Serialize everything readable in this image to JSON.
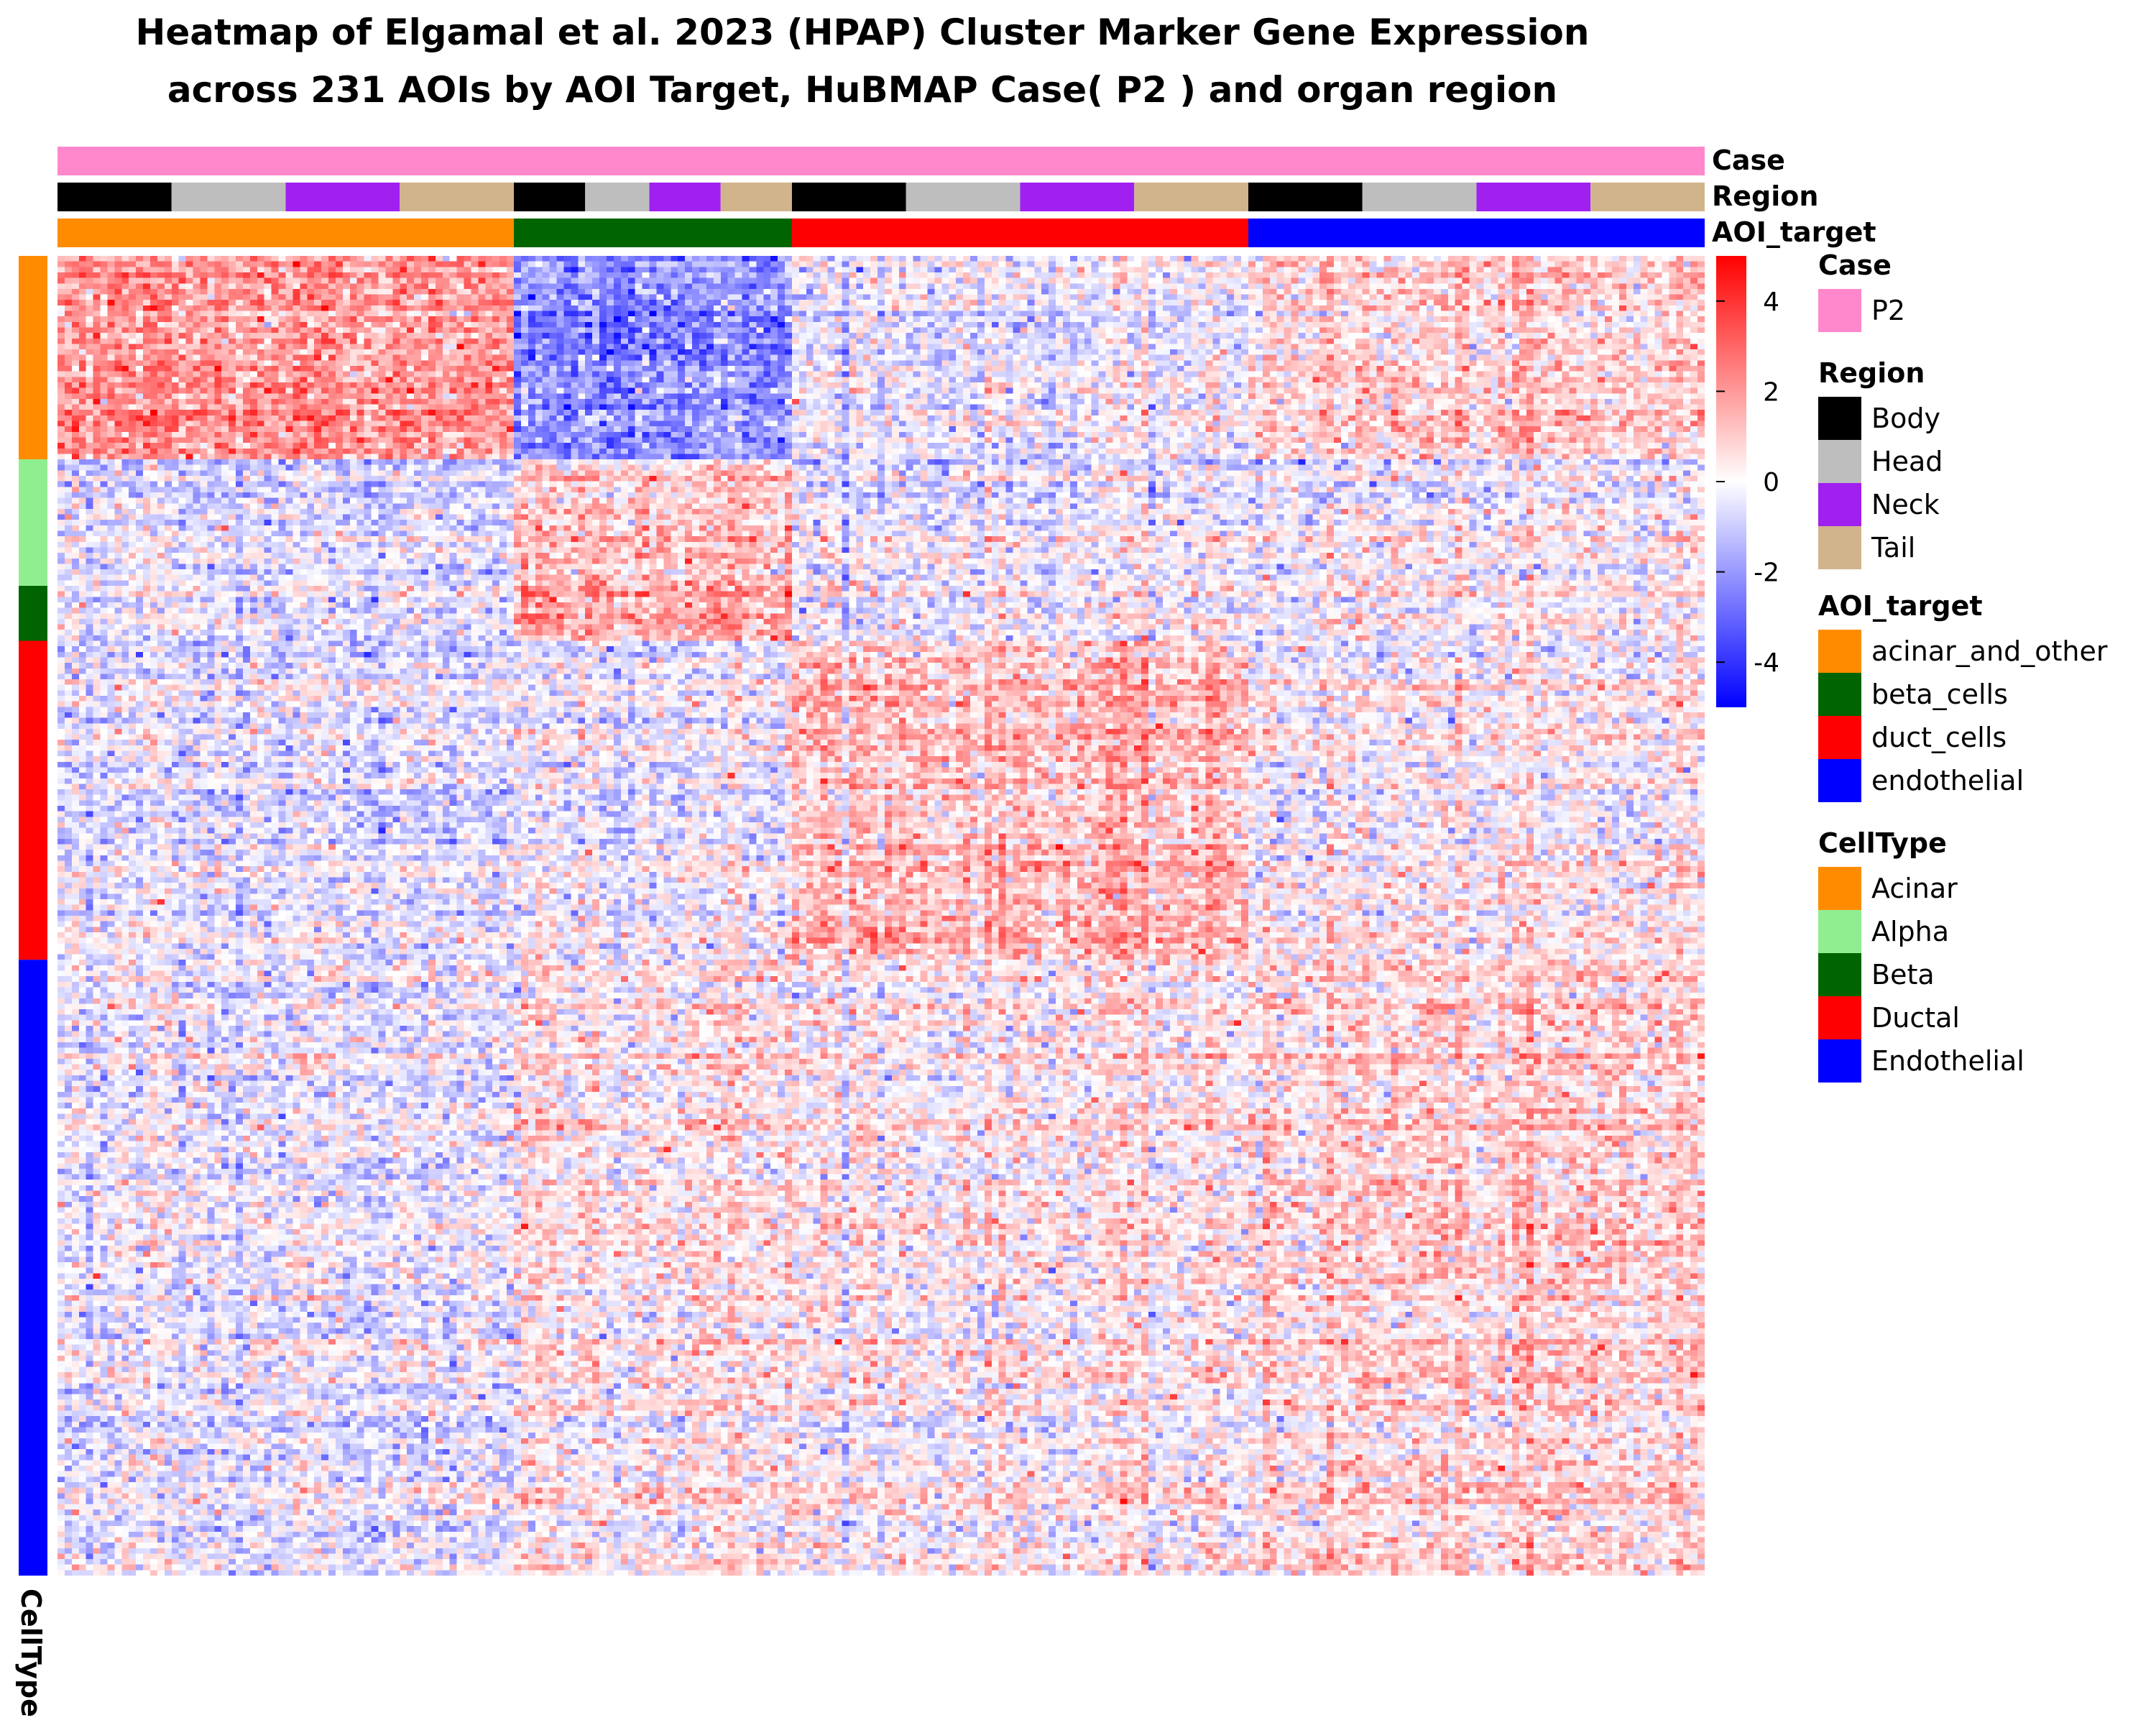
{
  "chart_data": {
    "type": "heatmap",
    "title_line1": "Heatmap of Elgamal et al. 2023 (HPAP) Cluster Marker Gene Expression",
    "title_line2": "across 231 AOIs by AOI Target, HuBMAP Case( P2 ) and organ region",
    "annotation_labels": {
      "case": "Case",
      "region": "Region",
      "aoi_target": "AOI_target",
      "celltype": "CellType"
    },
    "n_columns": 231,
    "column_groups": [
      {
        "aoi_target": "acinar_and_other",
        "regions": [
          {
            "name": "Body",
            "n": 16
          },
          {
            "name": "Head",
            "n": 16
          },
          {
            "name": "Neck",
            "n": 16
          },
          {
            "name": "Tail",
            "n": 16
          }
        ]
      },
      {
        "aoi_target": "beta_cells",
        "regions": [
          {
            "name": "Body",
            "n": 10
          },
          {
            "name": "Head",
            "n": 9
          },
          {
            "name": "Neck",
            "n": 10
          },
          {
            "name": "Tail",
            "n": 10
          }
        ]
      },
      {
        "aoi_target": "duct_cells",
        "regions": [
          {
            "name": "Body",
            "n": 16
          },
          {
            "name": "Head",
            "n": 16
          },
          {
            "name": "Neck",
            "n": 16
          },
          {
            "name": "Tail",
            "n": 16
          }
        ]
      },
      {
        "aoi_target": "endothelial",
        "regions": [
          {
            "name": "Body",
            "n": 16
          },
          {
            "name": "Head",
            "n": 16
          },
          {
            "name": "Neck",
            "n": 16
          },
          {
            "name": "Tail",
            "n": 16
          }
        ]
      }
    ],
    "row_groups": [
      {
        "celltype": "Acinar",
        "fraction": 0.153
      },
      {
        "celltype": "Alpha",
        "fraction": 0.095
      },
      {
        "celltype": "Beta",
        "fraction": 0.042
      },
      {
        "celltype": "Ductal",
        "fraction": 0.24
      },
      {
        "celltype": "Endothelial",
        "fraction": 0.47
      }
    ],
    "group_mean_expression": {
      "rows": [
        "Acinar",
        "Alpha",
        "Beta",
        "Ductal",
        "Endothelial"
      ],
      "columns": [
        "acinar_and_other",
        "beta_cells",
        "duct_cells",
        "endothelial"
      ],
      "values": [
        [
          2.0,
          -2.2,
          -0.3,
          0.8
        ],
        [
          -0.5,
          1.2,
          -0.2,
          0.0
        ],
        [
          -0.4,
          1.8,
          -0.1,
          0.1
        ],
        [
          -0.5,
          -0.2,
          1.2,
          0.1
        ],
        [
          -0.4,
          0.4,
          0.2,
          0.7
        ]
      ]
    },
    "color_scale": {
      "min": -5,
      "mid": 0,
      "max": 5,
      "low": "#0000FF",
      "midcolor": "#FFFFFF",
      "high": "#FF0000",
      "ticks": [
        4,
        2,
        0,
        -2,
        -4
      ],
      "tick_labels": [
        "4",
        "2",
        "0",
        "-2",
        "-4"
      ]
    },
    "legends": {
      "case": {
        "title": "Case",
        "entries": [
          {
            "label": "P2",
            "color": "#FF88CC"
          }
        ]
      },
      "region": {
        "title": "Region",
        "entries": [
          {
            "label": "Body",
            "color": "#000000"
          },
          {
            "label": "Head",
            "color": "#BEBEBE"
          },
          {
            "label": "Neck",
            "color": "#A020F0"
          },
          {
            "label": "Tail",
            "color": "#D2B48C"
          }
        ]
      },
      "aoi_target": {
        "title": "AOI_target",
        "entries": [
          {
            "label": "acinar_and_other",
            "color": "#FF8C00"
          },
          {
            "label": "beta_cells",
            "color": "#006400"
          },
          {
            "label": "duct_cells",
            "color": "#FF0000"
          },
          {
            "label": "endothelial",
            "color": "#0000FF"
          }
        ]
      },
      "celltype": {
        "title": "CellType",
        "entries": [
          {
            "label": "Acinar",
            "color": "#FF8C00"
          },
          {
            "label": "Alpha",
            "color": "#90EE90"
          },
          {
            "label": "Beta",
            "color": "#006400"
          },
          {
            "label": "Ductal",
            "color": "#FF0000"
          },
          {
            "label": "Endothelial",
            "color": "#0000FF"
          }
        ]
      }
    },
    "legend_placement": "right",
    "grid": false
  }
}
